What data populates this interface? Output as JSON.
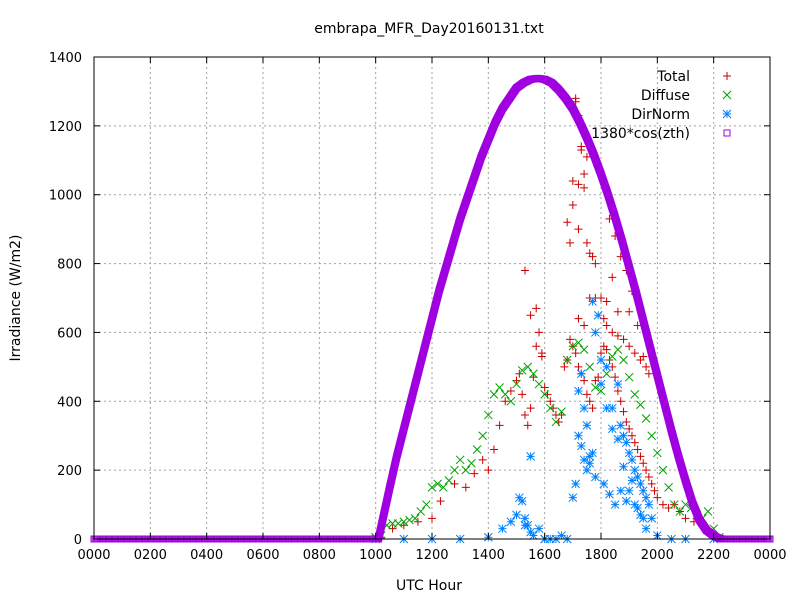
{
  "chart_data": {
    "type": "scatter",
    "title": "embrapa_MFR_Day20160131.txt",
    "xlabel": "UTC Hour",
    "ylabel": "Irradiance (W/m2)",
    "xlim": [
      0,
      24
    ],
    "ylim": [
      0,
      1400
    ],
    "grid": true,
    "legend_position": "top-right",
    "x_tick_labels": [
      "0000",
      "0200",
      "0400",
      "0600",
      "0800",
      "1000",
      "1200",
      "1400",
      "1600",
      "1800",
      "2000",
      "2200",
      "0000"
    ],
    "y_ticks": [
      0,
      200,
      400,
      600,
      800,
      1000,
      1200,
      1400
    ],
    "series": [
      {
        "name": "Total",
        "marker": "+",
        "color": "#cc0000",
        "x": [
          10.2,
          10.6,
          11.0,
          11.5,
          12.0,
          12.3,
          12.8,
          13.2,
          13.5,
          13.8,
          14.0,
          14.2,
          14.4,
          14.6,
          14.8,
          15.0,
          15.1,
          15.2,
          15.3,
          15.4,
          15.5,
          15.6,
          15.7,
          15.8,
          15.9,
          16.0,
          16.1,
          16.2,
          16.3,
          16.4,
          16.5,
          16.6,
          16.7,
          16.8,
          16.9,
          17.0,
          17.1,
          17.2,
          17.3,
          17.4,
          17.5,
          17.6,
          17.7,
          17.8,
          17.9,
          18.0,
          18.1,
          18.2,
          18.3,
          18.4,
          18.5,
          18.6,
          18.7,
          18.8,
          18.9,
          19.0,
          19.1,
          19.2,
          19.3,
          19.4,
          19.5,
          19.6,
          19.7,
          19.8,
          19.9,
          20.0,
          20.2,
          20.4,
          20.6,
          20.8,
          21.0,
          21.3,
          21.6,
          21.9,
          22.1,
          15.3,
          15.5,
          15.7,
          15.9,
          16.8,
          16.9,
          17.0,
          17.1,
          17.2,
          17.3,
          17.4,
          17.5,
          17.0,
          17.2,
          17.4,
          17.6,
          17.7,
          17.8,
          18.0,
          18.1,
          18.2,
          18.4,
          18.6,
          18.8,
          19.0,
          19.2,
          19.4,
          19.5,
          19.6,
          19.7,
          17.1,
          17.3,
          17.5,
          18.3,
          18.5,
          18.7,
          18.9,
          19.1,
          17.2,
          17.4,
          17.6,
          17.8,
          18.2,
          18.6,
          19.0,
          19.3,
          17.2,
          17.5,
          18.4
        ],
        "y": [
          5,
          30,
          40,
          50,
          60,
          110,
          160,
          150,
          190,
          230,
          200,
          260,
          330,
          400,
          430,
          460,
          480,
          420,
          360,
          330,
          380,
          470,
          560,
          600,
          540,
          440,
          420,
          400,
          380,
          360,
          340,
          360,
          500,
          520,
          580,
          560,
          540,
          500,
          480,
          460,
          420,
          400,
          380,
          460,
          470,
          540,
          560,
          550,
          520,
          500,
          470,
          430,
          400,
          370,
          340,
          320,
          300,
          280,
          260,
          240,
          220,
          200,
          180,
          160,
          140,
          120,
          100,
          90,
          100,
          80,
          60,
          50,
          40,
          20,
          5,
          780,
          650,
          670,
          530,
          920,
          860,
          970,
          1280,
          1230,
          1130,
          1060,
          1160,
          1040,
          1030,
          1020,
          830,
          820,
          800,
          700,
          640,
          620,
          600,
          590,
          580,
          560,
          540,
          520,
          530,
          500,
          480,
          1270,
          1140,
          1110,
          930,
          880,
          820,
          780,
          720,
          640,
          620,
          700,
          700,
          690,
          660,
          660,
          620,
          900,
          860,
          760
        ]
      },
      {
        "name": "Diffuse",
        "marker": "x",
        "color": "#00a000",
        "x": [
          10.0,
          10.2,
          10.4,
          10.6,
          10.8,
          11.0,
          11.2,
          11.4,
          11.6,
          11.8,
          12.0,
          12.2,
          12.4,
          12.6,
          12.8,
          13.0,
          13.2,
          13.4,
          13.6,
          13.8,
          14.0,
          14.2,
          14.4,
          14.6,
          14.8,
          15.0,
          15.2,
          15.4,
          15.6,
          15.8,
          16.0,
          16.2,
          16.4,
          16.6,
          16.8,
          17.0,
          17.2,
          17.4,
          17.6,
          17.8,
          18.0,
          18.2,
          18.4,
          18.6,
          18.8,
          19.0,
          19.2,
          19.4,
          19.6,
          19.8,
          20.0,
          20.2,
          20.4,
          20.6,
          20.8,
          21.0,
          21.2,
          21.4,
          21.6,
          21.8,
          22.0,
          22.2
        ],
        "y": [
          5,
          10,
          40,
          45,
          45,
          50,
          55,
          60,
          80,
          100,
          150,
          160,
          150,
          170,
          200,
          230,
          200,
          220,
          260,
          300,
          360,
          420,
          440,
          420,
          400,
          450,
          490,
          500,
          480,
          450,
          420,
          380,
          340,
          370,
          520,
          560,
          570,
          550,
          500,
          440,
          430,
          480,
          530,
          550,
          520,
          470,
          420,
          390,
          350,
          300,
          250,
          200,
          150,
          100,
          80,
          100,
          90,
          70,
          60,
          80,
          30,
          5
        ]
      },
      {
        "name": "DirNorm",
        "marker": "*",
        "color": "#0080ff",
        "x": [
          10.0,
          11.0,
          12.0,
          13.0,
          14.0,
          14.5,
          14.8,
          15.0,
          15.1,
          15.2,
          15.3,
          15.4,
          15.5,
          15.6,
          15.8,
          16.0,
          16.2,
          16.4,
          16.6,
          16.8,
          17.0,
          17.1,
          17.2,
          17.3,
          17.4,
          17.5,
          17.6,
          17.7,
          17.8,
          17.9,
          18.0,
          18.2,
          18.4,
          18.6,
          18.7,
          18.8,
          18.9,
          19.0,
          19.1,
          19.2,
          19.3,
          19.4,
          19.5,
          19.6,
          19.7,
          19.8,
          20.0,
          20.5,
          21.0,
          22.0,
          17.2,
          17.4,
          17.6,
          17.8,
          18.1,
          18.3,
          18.5,
          18.7,
          18.9,
          19.1,
          19.3,
          19.5,
          17.3,
          17.5,
          17.7,
          18.0,
          18.2,
          18.4,
          18.6,
          18.8,
          19.0,
          19.2,
          19.4,
          19.6,
          15.3,
          15.5,
          16.0
        ],
        "y": [
          0,
          0,
          0,
          0,
          5,
          30,
          50,
          70,
          120,
          110,
          60,
          40,
          20,
          10,
          30,
          0,
          0,
          0,
          10,
          0,
          120,
          160,
          300,
          270,
          230,
          200,
          240,
          690,
          600,
          650,
          520,
          500,
          380,
          450,
          330,
          300,
          280,
          250,
          230,
          200,
          180,
          160,
          140,
          120,
          100,
          60,
          10,
          0,
          0,
          0,
          430,
          380,
          220,
          180,
          160,
          130,
          100,
          140,
          110,
          170,
          90,
          60,
          480,
          330,
          250,
          450,
          380,
          320,
          290,
          210,
          140,
          100,
          70,
          30,
          40,
          240,
          0
        ]
      },
      {
        "name": "1380*cos(zth)",
        "marker": "square",
        "color": "#a000e0",
        "x": [
          0,
          10.1,
          10.3,
          10.5,
          10.75,
          11.0,
          11.25,
          11.5,
          11.75,
          12.0,
          12.25,
          12.5,
          12.75,
          13.0,
          13.25,
          13.5,
          13.75,
          14.0,
          14.25,
          14.5,
          14.75,
          15.0,
          15.25,
          15.5,
          15.75,
          16.0,
          16.25,
          16.5,
          16.75,
          17.0,
          17.25,
          17.5,
          17.75,
          18.0,
          18.25,
          18.5,
          18.75,
          19.0,
          19.25,
          19.5,
          19.75,
          20.0,
          20.25,
          20.5,
          20.75,
          21.0,
          21.25,
          21.5,
          21.75,
          22.0,
          22.15,
          22.3,
          24
        ],
        "y": [
          0,
          0,
          75,
          150,
          240,
          320,
          400,
          480,
          560,
          640,
          720,
          790,
          860,
          930,
          990,
          1050,
          1110,
          1160,
          1210,
          1250,
          1280,
          1310,
          1325,
          1335,
          1338,
          1335,
          1325,
          1305,
          1280,
          1250,
          1210,
          1165,
          1115,
          1060,
          1000,
          935,
          865,
          790,
          715,
          635,
          555,
          475,
          395,
          315,
          240,
          170,
          105,
          55,
          25,
          10,
          3,
          0,
          0
        ]
      }
    ]
  }
}
